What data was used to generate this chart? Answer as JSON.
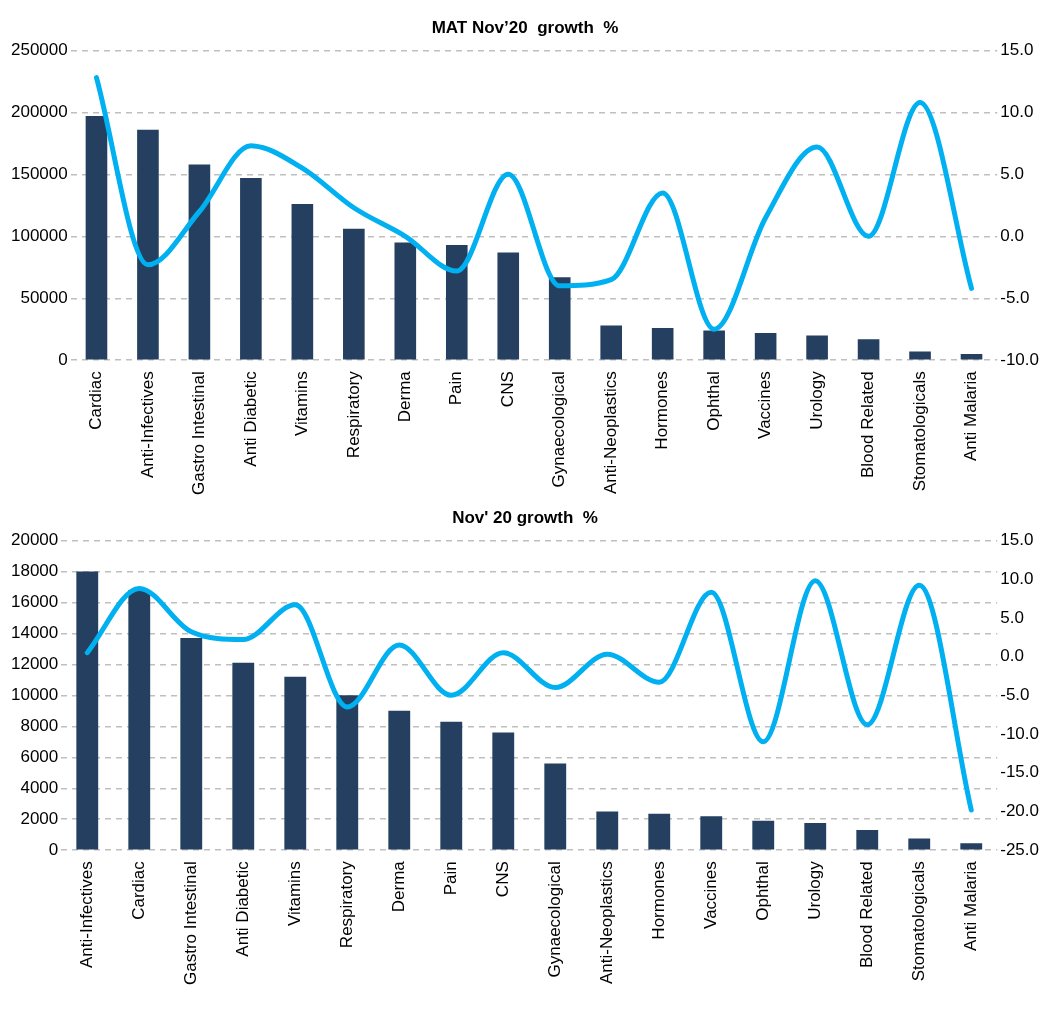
{
  "chart_data": [
    {
      "type": "bar",
      "title": "MAT Nov’20  growth  %",
      "categories": [
        "Cardiac",
        "Anti-Infectives",
        "Gastro Intestinal",
        "Anti Diabetic",
        "Vitamins",
        "Respiratory",
        "Derma",
        "Pain",
        "CNS",
        "Gynaecological",
        "Anti-Neoplastics",
        "Hormones",
        "Ophthal",
        "Vaccines",
        "Urology",
        "Blood Related",
        "Stomatologicals",
        "Anti Malaria"
      ],
      "series": [
        {
          "color": "#243f60",
          "values": [
            197000,
            186000,
            158000,
            147000,
            126000,
            106000,
            95000,
            93000,
            87000,
            67000,
            28000,
            26000,
            24000,
            22000,
            20000,
            17000,
            7000,
            5000
          ]
        },
        {
          "type": "line",
          "axis": "y2",
          "color": "#00b0f0",
          "values": [
            12.8,
            -2.3,
            2,
            7.3,
            5.5,
            2.3,
            0,
            -2.8,
            5,
            -4,
            -3.5,
            3.5,
            -7.5,
            1.5,
            7.2,
            0,
            10.8,
            -4.2
          ]
        }
      ],
      "ylim": [
        0,
        250000
      ],
      "yticks": [
        0,
        50000,
        100000,
        150000,
        200000,
        250000
      ],
      "y2lim": [
        -10,
        15
      ],
      "y2ticks": [
        {
          "value": -10,
          "label": "-10.0"
        },
        {
          "value": -5,
          "label": "-5.0"
        },
        {
          "value": 0,
          "label": "0.0"
        },
        {
          "value": 5,
          "label": "5.0"
        },
        {
          "value": 10,
          "label": "10.0"
        },
        {
          "value": 15,
          "label": "15.0"
        }
      ],
      "grid": "y",
      "legend": false,
      "marker": "none",
      "line_style": "solid"
    },
    {
      "type": "bar",
      "title": "Nov' 20 growth  %",
      "categories": [
        "Anti-Infectives",
        "Cardiac",
        "Gastro Intestinal",
        "Anti Diabetic",
        "Vitamins",
        "Respiratory",
        "Derma",
        "Pain",
        "CNS",
        "Gynaecological",
        "Anti-Neoplastics",
        "Hormones",
        "Vaccines",
        "Ophthal",
        "Urology",
        "Blood Related",
        "Stomatologicals",
        "Anti Malaria"
      ],
      "series": [
        {
          "color": "#243f60",
          "values": [
            18000,
            16800,
            13700,
            12100,
            11200,
            10000,
            9000,
            8300,
            7600,
            5600,
            2500,
            2350,
            2200,
            1900,
            1750,
            1300,
            750,
            450
          ]
        },
        {
          "type": "line",
          "axis": "y2",
          "color": "#00b0f0",
          "values": [
            0.5,
            8.8,
            3.2,
            2.2,
            6.7,
            -6.5,
            1.5,
            -5,
            0.5,
            -4,
            0.3,
            -3.3,
            8.3,
            -11,
            9.8,
            -8.8,
            9.2,
            -19.8
          ]
        }
      ],
      "ylim": [
        0,
        20000
      ],
      "yticks": [
        0,
        2000,
        4000,
        6000,
        8000,
        10000,
        12000,
        14000,
        16000,
        18000,
        20000
      ],
      "y2lim": [
        -25,
        15
      ],
      "y2ticks": [
        {
          "value": -25,
          "label": "-25.0"
        },
        {
          "value": -20,
          "label": "-20.0"
        },
        {
          "value": -15,
          "label": "-15.0"
        },
        {
          "value": -10,
          "label": "-10.0"
        },
        {
          "value": -5,
          "label": "-5.0"
        },
        {
          "value": 0,
          "label": "0.0"
        },
        {
          "value": 5,
          "label": "5.0"
        },
        {
          "value": 10,
          "label": "10.0"
        },
        {
          "value": 15,
          "label": "15.0"
        }
      ],
      "grid": "y",
      "legend": false,
      "marker": "none",
      "line_style": "solid"
    }
  ]
}
